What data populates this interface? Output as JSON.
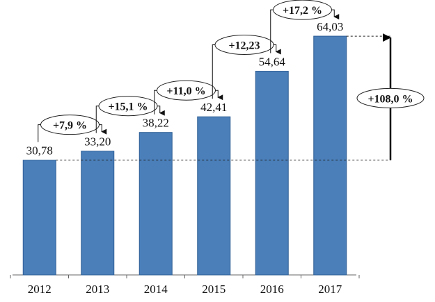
{
  "chart_data": {
    "type": "bar",
    "categories": [
      "2012",
      "2013",
      "2014",
      "2015",
      "2016",
      "2017"
    ],
    "values": [
      30.78,
      33.2,
      38.22,
      42.41,
      54.64,
      64.03
    ],
    "value_labels": [
      "30,78",
      "33,20",
      "38,22",
      "42,41",
      "54,64",
      "64,03"
    ],
    "growth_labels": [
      "+7,9 %",
      "+15,1 %",
      "+11,0 %",
      "+12,23",
      "+17,2 %"
    ],
    "total_growth_label": "+108,0 %",
    "ylim": [
      0,
      70
    ],
    "grid": false,
    "colors": {
      "bar": "#4a7fba",
      "bar_border": "#2f5f94"
    }
  }
}
